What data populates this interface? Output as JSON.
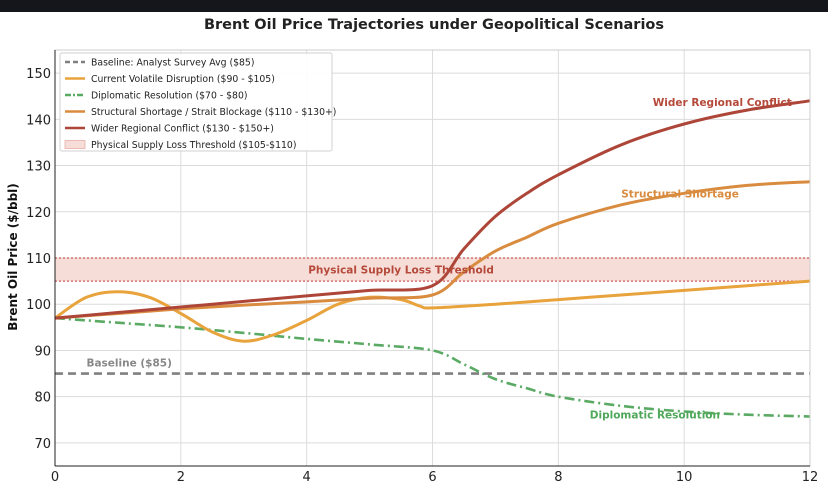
{
  "chart_data": {
    "type": "line",
    "title": "Brent Oil Price Trajectories under Geopolitical Scenarios",
    "xlabel": "",
    "ylabel": "Brent Oil Price ($/bbl)",
    "xlim": [
      0,
      12
    ],
    "ylim": [
      65,
      155
    ],
    "x_ticks": [
      0,
      2,
      4,
      6,
      8,
      10,
      12
    ],
    "y_ticks": [
      70,
      80,
      90,
      100,
      110,
      120,
      130,
      140,
      150
    ],
    "grid": true,
    "legend_position": "top-left",
    "band": {
      "label": "Physical Supply Loss Threshold ($105-$110)",
      "y0": 105,
      "y1": 110,
      "color": "#e8a8a0",
      "annotation": "Physical Supply Loss Threshold"
    },
    "series": [
      {
        "name": "Baseline: Analyst Survey Avg ($85)",
        "color": "#808080",
        "style": "dashed",
        "x": [
          0,
          12
        ],
        "y": [
          85,
          85
        ],
        "annotation": "Baseline ($85)"
      },
      {
        "name": "Current Volatile Disruption ($90 - $105)",
        "color": "#e8a33d",
        "style": "solid",
        "x": [
          0,
          0.5,
          1,
          1.5,
          2,
          2.5,
          3,
          3.5,
          4,
          4.5,
          5,
          5.5,
          5.8,
          6,
          7,
          8,
          9,
          10,
          11,
          12
        ],
        "y": [
          97,
          101.5,
          102.7,
          101.5,
          98,
          94,
          92,
          93.5,
          96.5,
          100,
          101.5,
          101,
          99.6,
          99.2,
          100,
          101,
          102,
          103,
          104,
          105
        ]
      },
      {
        "name": "Diplomatic Resolution ($70 - $80)",
        "color": "#5aaa64",
        "style": "dashdot",
        "x": [
          0,
          1,
          2,
          3,
          4,
          5,
          6,
          6.5,
          7,
          7.5,
          8,
          9,
          10,
          11,
          12
        ],
        "y": [
          97,
          96,
          95,
          93.8,
          92.5,
          91.3,
          90,
          87,
          83.8,
          81.8,
          80,
          78,
          76.8,
          76.1,
          75.7
        ],
        "annotation": "Diplomatic Resolution"
      },
      {
        "name": "Structural Shortage / Strait Blockage ($110 - $130+)",
        "color": "#d98c3f",
        "style": "solid",
        "x": [
          0,
          1,
          2,
          3,
          4,
          5,
          6,
          6.5,
          7,
          7.5,
          8,
          9,
          10,
          11,
          12
        ],
        "y": [
          97,
          98,
          99,
          99.8,
          100.5,
          101.3,
          102,
          107,
          111.5,
          114.5,
          117.5,
          121.5,
          124,
          125.7,
          126.5
        ],
        "annotation": "Structural Shortage"
      },
      {
        "name": "Wider Regional Conflict ($130 - $150+)",
        "color": "#ad4638",
        "style": "solid",
        "x": [
          0,
          1,
          2,
          3,
          4,
          5,
          6,
          6.5,
          7,
          7.5,
          8,
          9,
          10,
          11,
          12
        ],
        "y": [
          97,
          98.2,
          99.4,
          100.6,
          101.8,
          103,
          104,
          112,
          119,
          124,
          128,
          134.5,
          139,
          142,
          144
        ],
        "annotation": "Wider Regional Conflict"
      }
    ]
  }
}
